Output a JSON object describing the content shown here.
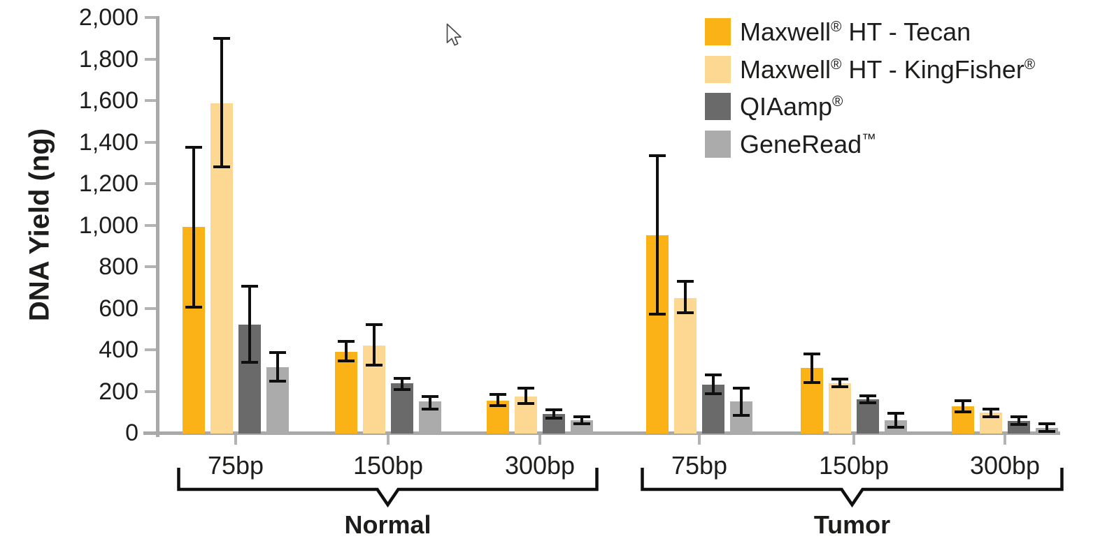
{
  "chart_data": {
    "type": "bar",
    "title": "",
    "ylabel": "DNA Yield (ng)",
    "xlabel": "",
    "ylim": [
      0,
      2000
    ],
    "ytick_step": 200,
    "grid": false,
    "legend_position": "top-right",
    "axis_color": "#A9A9A9",
    "tick_color": "#B3B3B3",
    "error_bar_color": "#0f0f0f",
    "text_color": "#1d1d1b",
    "sections": [
      {
        "label": "Normal",
        "categories": [
          "75bp",
          "150bp",
          "300bp"
        ]
      },
      {
        "label": "Tumor",
        "categories": [
          "75bp",
          "150bp",
          "300bp"
        ]
      }
    ],
    "group_order": [
      "Normal 75bp",
      "Normal 150bp",
      "Normal 300bp",
      "Tumor 75bp",
      "Tumor 150bp",
      "Tumor 300bp"
    ],
    "series": [
      {
        "name": "Maxwell® HT - Tecan",
        "color": "#FAB216",
        "values": [
          990,
          390,
          155,
          950,
          313,
          128
        ],
        "err_low": [
          605,
          345,
          130,
          570,
          242,
          100
        ],
        "err_high": [
          1375,
          440,
          185,
          1335,
          380,
          155
        ]
      },
      {
        "name": "Maxwell® HT - KingFisher®",
        "color": "#FCD892",
        "values": [
          1585,
          420,
          175,
          650,
          240,
          98
        ],
        "err_low": [
          1280,
          325,
          140,
          578,
          222,
          78
        ],
        "err_high": [
          1900,
          520,
          215,
          730,
          259,
          114
        ]
      },
      {
        "name": "QIAamp®",
        "color": "#6A6A6A",
        "values": [
          520,
          240,
          92,
          232,
          161,
          58
        ],
        "err_low": [
          340,
          210,
          72,
          188,
          145,
          40
        ],
        "err_high": [
          705,
          262,
          110,
          278,
          178,
          78
        ]
      },
      {
        "name": "GeneRead™",
        "color": "#ABABAB",
        "values": [
          315,
          152,
          62,
          151,
          62,
          25
        ],
        "err_low": [
          250,
          115,
          45,
          85,
          28,
          8
        ],
        "err_high": [
          385,
          175,
          78,
          215,
          94,
          44
        ]
      }
    ]
  }
}
